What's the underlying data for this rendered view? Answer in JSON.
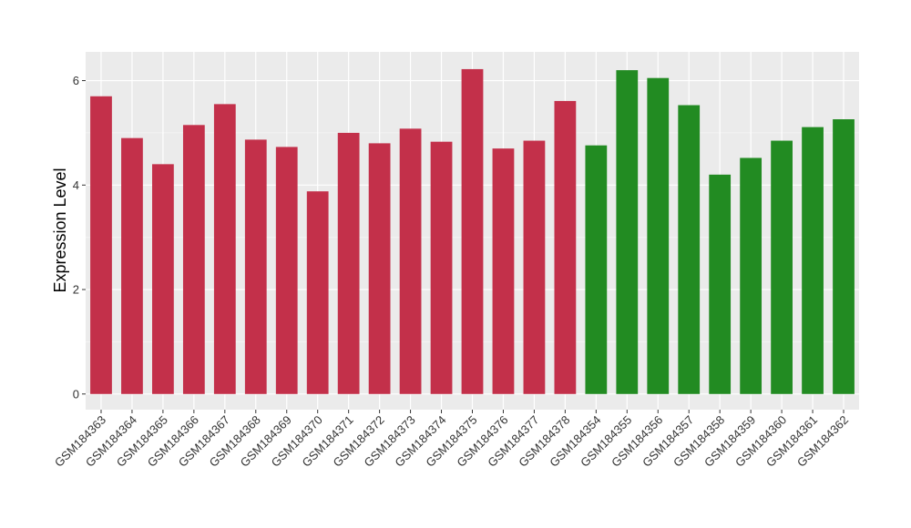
{
  "chart_data": {
    "type": "bar",
    "ylabel": "Expression Level",
    "xlabel": "",
    "ylim": [
      -0.3,
      6.55
    ],
    "yticks": [
      0,
      2,
      4,
      6
    ],
    "grid": true,
    "panel_color": "#ebebeb",
    "categories": [
      "GSM184363",
      "GSM184364",
      "GSM184365",
      "GSM184366",
      "GSM184367",
      "GSM184368",
      "GSM184369",
      "GSM184370",
      "GSM184371",
      "GSM184372",
      "GSM184373",
      "GSM184374",
      "GSM184375",
      "GSM184376",
      "GSM184377",
      "GSM184378",
      "GSM184354",
      "GSM184355",
      "GSM184356",
      "GSM184357",
      "GSM184358",
      "GSM184359",
      "GSM184360",
      "GSM184361",
      "GSM184362"
    ],
    "values": [
      5.7,
      4.9,
      4.4,
      5.15,
      5.55,
      4.87,
      4.73,
      3.88,
      5.0,
      4.8,
      5.08,
      4.83,
      6.22,
      4.7,
      4.85,
      5.61,
      4.76,
      6.2,
      6.05,
      5.53,
      4.2,
      4.52,
      4.85,
      5.11,
      5.26
    ],
    "groups": [
      "a",
      "a",
      "a",
      "a",
      "a",
      "a",
      "a",
      "a",
      "a",
      "a",
      "a",
      "a",
      "a",
      "a",
      "a",
      "a",
      "b",
      "b",
      "b",
      "b",
      "b",
      "b",
      "b",
      "b",
      "b"
    ],
    "colors": {
      "a": "#c3304a",
      "b": "#228b22"
    }
  }
}
